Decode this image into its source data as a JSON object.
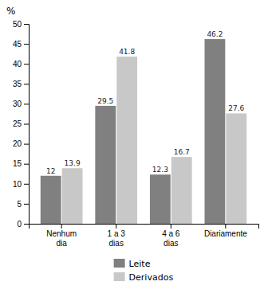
{
  "chart_data": {
    "type": "bar",
    "ylabel": "%",
    "categories": [
      "Nenhum\ndia",
      "1 a 3\ndias",
      "4 a 6\ndias",
      "Diariamente"
    ],
    "series": [
      {
        "name": "Leite",
        "color": "#808080",
        "values": [
          12,
          29.5,
          12.3,
          46.2
        ]
      },
      {
        "name": "Derivados",
        "color": "#c8c8c8",
        "values": [
          13.9,
          41.8,
          16.7,
          27.6
        ]
      }
    ],
    "ylim": [
      0,
      50
    ],
    "yticks": [
      0,
      5,
      10,
      15,
      20,
      25,
      30,
      35,
      40,
      45,
      50
    ],
    "grid": false,
    "data_labels": true,
    "legend": "bottom"
  }
}
